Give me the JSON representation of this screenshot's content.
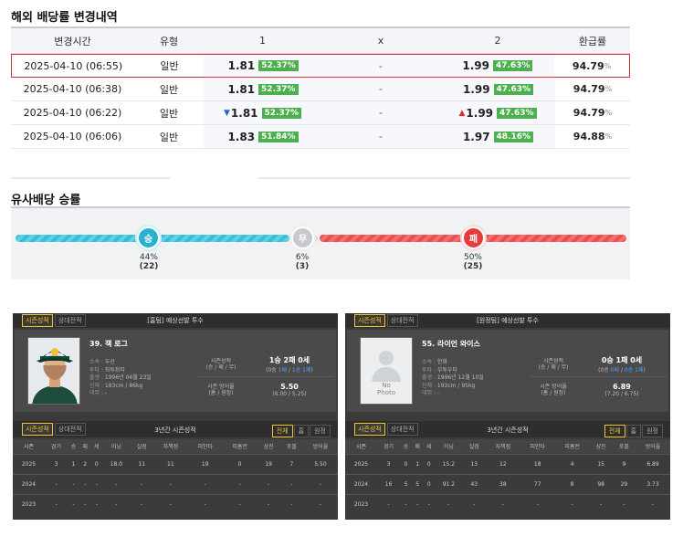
{
  "odds_section": {
    "title": "해외 배당률 변경내역",
    "headers": [
      "변경시간",
      "유형",
      "1",
      "x",
      "2",
      "환급률"
    ],
    "rows": [
      {
        "time": "2025-04-10 (06:55)",
        "type": "일반",
        "home": "1.81",
        "home_pct": "52.37%",
        "draw": "-",
        "away": "1.99",
        "away_pct": "47.63%",
        "refund": "94.79",
        "refund_unit": "%",
        "home_arrow": "",
        "away_arrow": ""
      },
      {
        "time": "2025-04-10 (06:38)",
        "type": "일반",
        "home": "1.81",
        "home_pct": "52.37%",
        "draw": "-",
        "away": "1.99",
        "away_pct": "47.63%",
        "refund": "94.79",
        "refund_unit": "%",
        "home_arrow": "",
        "away_arrow": ""
      },
      {
        "time": "2025-04-10 (06:22)",
        "type": "일반",
        "home": "1.81",
        "home_pct": "52.37%",
        "draw": "-",
        "away": "1.99",
        "away_pct": "47.63%",
        "refund": "94.79",
        "refund_unit": "%",
        "home_arrow": "▼",
        "away_arrow": "▲"
      },
      {
        "time": "2025-04-10 (06:06)",
        "type": "일반",
        "home": "1.83",
        "home_pct": "51.84%",
        "draw": "-",
        "away": "1.97",
        "away_pct": "48.16%",
        "refund": "94.88",
        "refund_unit": "%",
        "home_arrow": "",
        "away_arrow": ""
      }
    ]
  },
  "similar_section": {
    "title": "유사배당 승률",
    "win": {
      "label": "승",
      "pct": "44%",
      "count": "(22)"
    },
    "draw": {
      "label": "무",
      "pct": "6%",
      "count": "(3)"
    },
    "loss": {
      "label": "패",
      "pct": "50%",
      "count": "(25)"
    }
  },
  "pitchers": [
    {
      "tab_on": "시즌성적",
      "tab_off": "상대전적",
      "title": "[홈팀] 예상선발 투수",
      "name": "39. 잭 로그",
      "team_label": "소속 : ",
      "team": "두산",
      "throw_label": "투타 : ",
      "throw": "좌투좌타",
      "birth_label": "출생 : ",
      "birth": "1996년 04월 23일",
      "body_label": "신체 : ",
      "body": "183cm / 86kg",
      "debut_label": "데뷔 : ",
      "debut": "-",
      "season_key": "시즌성적",
      "season_key_sub": "(승 / 패 / 무)",
      "season_val": "1승 2패 0세",
      "season_sub_pre": "(0승 ",
      "season_sub_mid": "1패",
      "season_sub_sep": " / ",
      "season_sub_mid2": "1승 1패",
      "season_sub_post": ")",
      "era_key": "시즌 방어율",
      "era_key_sub": "(홈 / 원정)",
      "era_val": "5.50",
      "era_sub": "(6.00 / 5.25)",
      "photo": "player-photo",
      "year_tab_on": "시즌성적",
      "year_tab_off": "상대전적",
      "year_title": "3년간 시즌성적",
      "filters": [
        "전체",
        "홈",
        "원정"
      ],
      "cols": [
        "시즌",
        "경기",
        "승",
        "패",
        "세",
        "이닝",
        "실점",
        "자책점",
        "피안타",
        "피홈런",
        "삼진",
        "포볼",
        "방어율"
      ],
      "rows": [
        [
          "2025",
          "3",
          "1",
          "2",
          "0",
          "18.0",
          "11",
          "11",
          "19",
          "0",
          "19",
          "7",
          "5.50"
        ],
        [
          "2024",
          "-",
          "-",
          "-",
          "-",
          "-",
          "-",
          "-",
          "-",
          "-",
          "-",
          "-",
          "-"
        ],
        [
          "2023",
          "-",
          "-",
          "-",
          "-",
          "-",
          "-",
          "-",
          "-",
          "-",
          "-",
          "-",
          "-"
        ]
      ]
    },
    {
      "tab_on": "시즌성적",
      "tab_off": "상대전적",
      "title": "[원정팀] 예상선발 투수",
      "name": "55. 라이언 와이스",
      "team_label": "소속 : ",
      "team": "한화",
      "throw_label": "투타 : ",
      "throw": "우투우타",
      "birth_label": "출생 : ",
      "birth": "1996년 12월 10일",
      "body_label": "신체 : ",
      "body": "193cm / 95kg",
      "debut_label": "데뷔 : ",
      "debut": "-",
      "season_key": "시즌성적",
      "season_key_sub": "(승 / 패 / 무)",
      "season_val": "0승 1패 0세",
      "season_sub_pre": "(0승 ",
      "season_sub_mid": "0패",
      "season_sub_sep": " / ",
      "season_sub_mid2": "0승 1패",
      "season_sub_post": ")",
      "era_key": "시즌 방어율",
      "era_key_sub": "(홈 / 원정)",
      "era_val": "6.89",
      "era_sub": "(7.20 / 6.75)",
      "photo_line1": "No",
      "photo_line2": "Photo",
      "year_tab_on": "시즌성적",
      "year_tab_off": "상대전적",
      "year_title": "3년간 시즌성적",
      "filters": [
        "전체",
        "홈",
        "원정"
      ],
      "cols": [
        "시즌",
        "경기",
        "승",
        "패",
        "세",
        "이닝",
        "실점",
        "자책점",
        "피안타",
        "피홈런",
        "삼진",
        "포볼",
        "방어율"
      ],
      "rows": [
        [
          "2025",
          "3",
          "0",
          "1",
          "0",
          "15.2",
          "13",
          "12",
          "18",
          "4",
          "15",
          "9",
          "6.89"
        ],
        [
          "2024",
          "16",
          "5",
          "5",
          "0",
          "91.2",
          "43",
          "38",
          "77",
          "8",
          "98",
          "29",
          "3.73"
        ],
        [
          "2023",
          "-",
          "-",
          "-",
          "-",
          "-",
          "-",
          "-",
          "-",
          "-",
          "-",
          "-",
          "-"
        ]
      ]
    }
  ],
  "colors": {
    "win": "#29b1cf",
    "draw": "#c7c9cd",
    "loss": "#e83b3e",
    "pct_badge": "#4cb04f",
    "highlight": "#c9383f"
  }
}
